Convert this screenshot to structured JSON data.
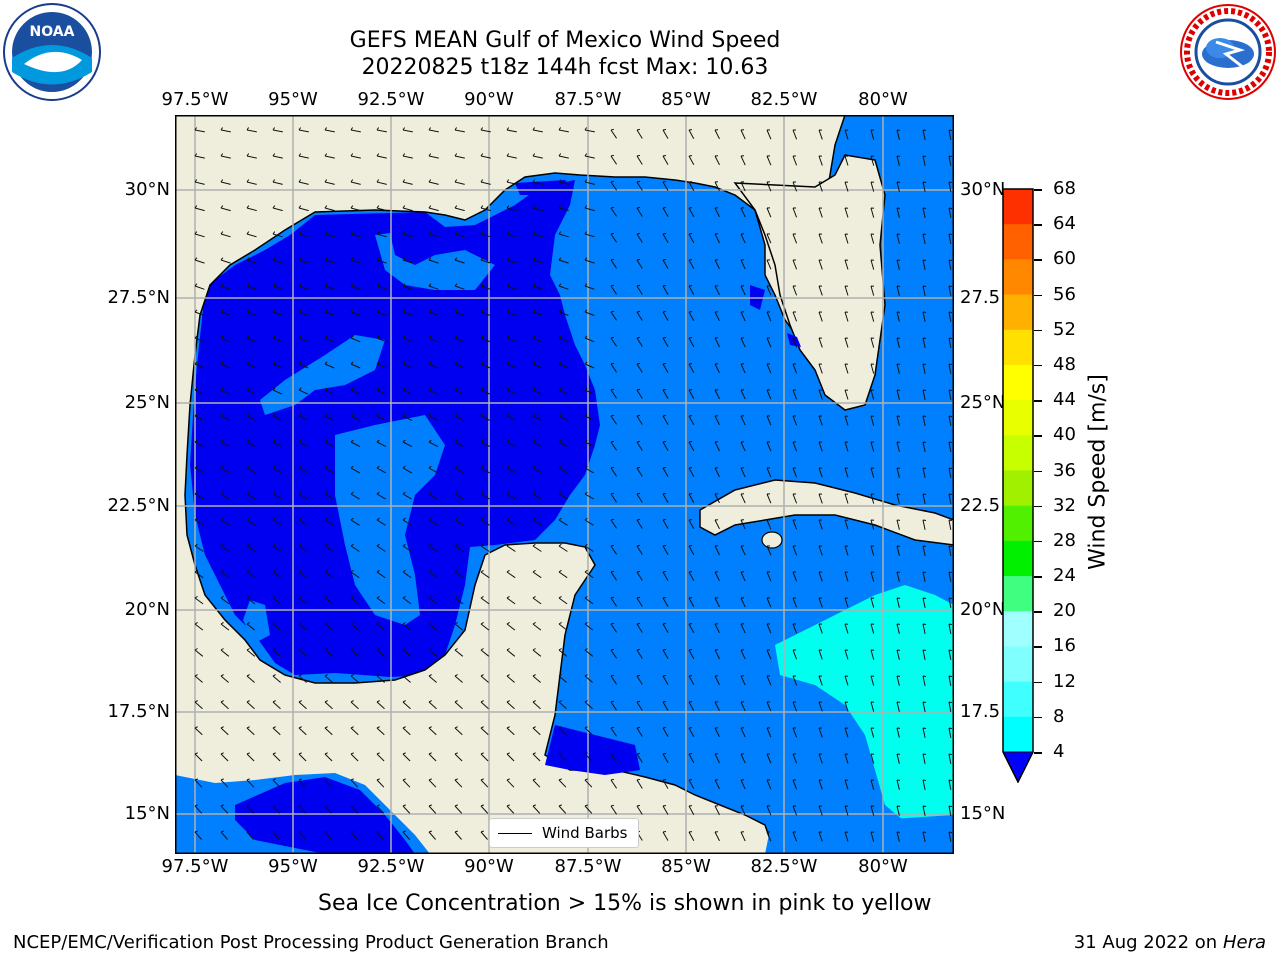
{
  "header": {
    "title_line1": "GEFS MEAN Gulf of Mexico Wind Speed",
    "title_line2": "20220825 t18z 144h fcst   Max: 10.63"
  },
  "logos": {
    "noara_text": "NOAA",
    "nws_text": "NATIONAL WEATHER SERVICE"
  },
  "map": {
    "lon_ticks": [
      "97.5°W",
      "95°W",
      "92.5°W",
      "90°W",
      "87.5°W",
      "85°W",
      "82.5°W",
      "80°W"
    ],
    "lat_ticks_left": [
      "30°N",
      "27.5°N",
      "25°N",
      "22.5°N",
      "20°N",
      "17.5°N",
      "15°N"
    ],
    "lat_ticks_right": [
      "30°N",
      "27.5",
      "25°N",
      "22.5",
      "20°N",
      "17.5",
      "15°N"
    ],
    "colors": {
      "land": "#efeedd",
      "ocean_dark": "#0000f0",
      "ocean_mid": "#0080ff",
      "ocean_cyan": "#00ffee",
      "grid": "#b0b0b0"
    },
    "legend_label": "Wind Barbs"
  },
  "colorbar": {
    "label": "Wind Speed [m/s]",
    "ticks": [
      "68",
      "64",
      "60",
      "56",
      "52",
      "48",
      "44",
      "40",
      "36",
      "32",
      "28",
      "24",
      "20",
      "16",
      "12",
      "8",
      "4"
    ],
    "colors": [
      "#0080ff",
      "#00ffff",
      "#40ffff",
      "#80ffff",
      "#a0ffff",
      "#40ff80",
      "#00f000",
      "#50f000",
      "#a0f000",
      "#c8ff00",
      "#e8ff00",
      "#ffff00",
      "#ffe000",
      "#ffb000",
      "#ff8800",
      "#ff6000",
      "#ff3000",
      "#ff0000"
    ],
    "under_color": "#0000ff"
  },
  "caption": "Sea Ice Concentration > 15% is shown in pink to yellow",
  "footer": {
    "left": "NCEP/EMC/Verification Post Processing Product Generation Branch",
    "date": "31 Aug 2022 on",
    "machine": "Hera"
  }
}
